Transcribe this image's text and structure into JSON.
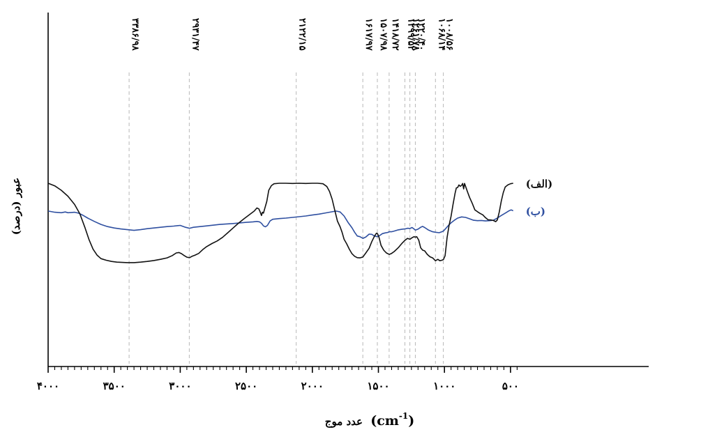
{
  "chart_data": {
    "type": "line",
    "title": "",
    "xlabel": "عدد موج (cm⁻¹)",
    "xlabel_parts": {
      "prefix": "عدد موج",
      "unit_base": "(cm",
      "unit_exp": "-1",
      "unit_close": ")"
    },
    "ylabel": "عبور (درصد)",
    "xlim": [
      4000,
      420
    ],
    "x_reversed": true,
    "ylim": [
      0,
      100
    ],
    "x_tick_labels": [
      {
        "value": 4000,
        "label": "۴۰۰۰"
      },
      {
        "value": 3500,
        "label": "۳۵۰۰"
      },
      {
        "value": 3000,
        "label": "۳۰۰۰"
      },
      {
        "value": 2500,
        "label": "۲۵۰۰"
      },
      {
        "value": 2000,
        "label": "۲۰۰۰"
      },
      {
        "value": 1500,
        "label": "۱۵۰۰"
      },
      {
        "value": 1000,
        "label": "۱۰۰۰"
      },
      {
        "value": 500,
        "label": "۵۰۰"
      }
    ],
    "minor_tick_step": 50,
    "grid": false,
    "peak_markers": [
      {
        "x": 3386.98,
        "label": "۳۳۸۶/۹۸"
      },
      {
        "x": 2931.47,
        "label": "۲۹۳۱/۴۷"
      },
      {
        "x": 2122.15,
        "label": "۲۱۲۲/۱۵"
      },
      {
        "x": 1617.97,
        "label": "۱۶۱۷/۹۷"
      },
      {
        "x": 1507.98,
        "label": "۱۵۰۷/۹۸"
      },
      {
        "x": 1418.72,
        "label": "۱۴۱۸/۷۲"
      },
      {
        "x": 1299.52,
        "label": "۱۲۹۹/۵۲"
      },
      {
        "x": 1261.78,
        "label": "۱۲۶۱/۷۸"
      },
      {
        "x": 1220.4,
        "label": "۱۲۲۰/۴۰"
      },
      {
        "x": 1068.14,
        "label": "۱۰۶۸/۱۴"
      },
      {
        "x": 1008.56,
        "label": "۱۰۰۸/۵۶"
      }
    ],
    "series": [
      {
        "name": "(ب)",
        "color": "#2e4fa0",
        "points": [
          [
            4000,
            76.4
          ],
          [
            3950,
            75.4
          ],
          [
            3900,
            75.0
          ],
          [
            3870,
            75.6
          ],
          [
            3850,
            75.0
          ],
          [
            3820,
            75.2
          ],
          [
            3800,
            75.4
          ],
          [
            3770,
            74.6
          ],
          [
            3740,
            73.0
          ],
          [
            3700,
            70.4
          ],
          [
            3650,
            67.6
          ],
          [
            3600,
            65.0
          ],
          [
            3550,
            63.2
          ],
          [
            3500,
            62.0
          ],
          [
            3450,
            61.2
          ],
          [
            3400,
            60.6
          ],
          [
            3350,
            60.0
          ],
          [
            3300,
            60.6
          ],
          [
            3250,
            61.4
          ],
          [
            3200,
            62.0
          ],
          [
            3150,
            62.6
          ],
          [
            3100,
            63.2
          ],
          [
            3050,
            63.6
          ],
          [
            3000,
            64.2
          ],
          [
            2960,
            62.6
          ],
          [
            2930,
            61.8
          ],
          [
            2900,
            62.6
          ],
          [
            2850,
            63.2
          ],
          [
            2800,
            63.8
          ],
          [
            2700,
            65.0
          ],
          [
            2600,
            65.8
          ],
          [
            2500,
            66.8
          ],
          [
            2450,
            67.2
          ],
          [
            2420,
            67.6
          ],
          [
            2400,
            67.2
          ],
          [
            2385,
            66.0
          ],
          [
            2370,
            63.8
          ],
          [
            2355,
            63.0
          ],
          [
            2340,
            64.2
          ],
          [
            2320,
            68.0
          ],
          [
            2300,
            69.4
          ],
          [
            2250,
            70.0
          ],
          [
            2200,
            70.4
          ],
          [
            2150,
            71.0
          ],
          [
            2100,
            71.6
          ],
          [
            2050,
            72.2
          ],
          [
            2000,
            73.0
          ],
          [
            1950,
            73.8
          ],
          [
            1900,
            74.8
          ],
          [
            1850,
            75.8
          ],
          [
            1820,
            76.4
          ],
          [
            1790,
            75.6
          ],
          [
            1760,
            72.2
          ],
          [
            1730,
            66.8
          ],
          [
            1700,
            62.2
          ],
          [
            1680,
            58.4
          ],
          [
            1660,
            55.2
          ],
          [
            1640,
            54.6
          ],
          [
            1617,
            53.2
          ],
          [
            1595,
            54.4
          ],
          [
            1570,
            56.8
          ],
          [
            1550,
            56.6
          ],
          [
            1530,
            55.2
          ],
          [
            1507,
            54.6
          ],
          [
            1490,
            55.6
          ],
          [
            1470,
            57.2
          ],
          [
            1450,
            57.8
          ],
          [
            1430,
            58.2
          ],
          [
            1418,
            58.8
          ],
          [
            1400,
            58.8
          ],
          [
            1380,
            59.4
          ],
          [
            1350,
            60.4
          ],
          [
            1320,
            61.0
          ],
          [
            1299,
            61.2
          ],
          [
            1280,
            61.8
          ],
          [
            1261,
            61.6
          ],
          [
            1245,
            62.4
          ],
          [
            1230,
            61.2
          ],
          [
            1220,
            60.2
          ],
          [
            1200,
            61.0
          ],
          [
            1180,
            62.6
          ],
          [
            1165,
            63.4
          ],
          [
            1150,
            62.4
          ],
          [
            1120,
            60.2
          ],
          [
            1090,
            58.8
          ],
          [
            1068,
            58.4
          ],
          [
            1040,
            58.0
          ],
          [
            1020,
            58.8
          ],
          [
            1008,
            59.4
          ],
          [
            990,
            61.6
          ],
          [
            970,
            64.2
          ],
          [
            950,
            66.4
          ],
          [
            925,
            68.6
          ],
          [
            900,
            70.4
          ],
          [
            870,
            71.4
          ],
          [
            840,
            71.0
          ],
          [
            810,
            69.8
          ],
          [
            780,
            68.6
          ],
          [
            750,
            68.2
          ],
          [
            720,
            68.4
          ],
          [
            690,
            68.0
          ],
          [
            660,
            68.2
          ],
          [
            630,
            68.6
          ],
          [
            600,
            70.4
          ],
          [
            570,
            72.6
          ],
          [
            540,
            74.6
          ],
          [
            515,
            76.4
          ],
          [
            495,
            77.4
          ],
          [
            480,
            76.6
          ]
        ]
      },
      {
        "name": "(الف)",
        "color": "#111111",
        "points": [
          [
            4000,
            100.0
          ],
          [
            3950,
            97.8
          ],
          [
            3900,
            94.0
          ],
          [
            3850,
            89.0
          ],
          [
            3800,
            82.0
          ],
          [
            3760,
            74.0
          ],
          [
            3720,
            62.0
          ],
          [
            3690,
            52.0
          ],
          [
            3660,
            44.0
          ],
          [
            3630,
            39.0
          ],
          [
            3600,
            36.0
          ],
          [
            3560,
            34.6
          ],
          [
            3520,
            33.6
          ],
          [
            3480,
            33.0
          ],
          [
            3440,
            32.8
          ],
          [
            3400,
            32.6
          ],
          [
            3350,
            32.6
          ],
          [
            3300,
            33.0
          ],
          [
            3250,
            33.6
          ],
          [
            3200,
            34.4
          ],
          [
            3150,
            35.4
          ],
          [
            3100,
            36.6
          ],
          [
            3060,
            38.6
          ],
          [
            3030,
            40.8
          ],
          [
            3010,
            41.2
          ],
          [
            2990,
            40.2
          ],
          [
            2970,
            38.6
          ],
          [
            2950,
            37.2
          ],
          [
            2930,
            36.8
          ],
          [
            2910,
            38.0
          ],
          [
            2890,
            38.8
          ],
          [
            2860,
            40.4
          ],
          [
            2830,
            43.6
          ],
          [
            2800,
            46.2
          ],
          [
            2760,
            48.8
          ],
          [
            2720,
            51.0
          ],
          [
            2680,
            54.0
          ],
          [
            2640,
            58.0
          ],
          [
            2600,
            62.0
          ],
          [
            2560,
            66.0
          ],
          [
            2520,
            69.6
          ],
          [
            2480,
            73.0
          ],
          [
            2440,
            76.4
          ],
          [
            2420,
            79.0
          ],
          [
            2405,
            78.2
          ],
          [
            2395,
            75.6
          ],
          [
            2385,
            72.6
          ],
          [
            2378,
            75.4
          ],
          [
            2370,
            74.6
          ],
          [
            2360,
            78.6
          ],
          [
            2345,
            84.6
          ],
          [
            2330,
            94.0
          ],
          [
            2310,
            98.0
          ],
          [
            2290,
            99.6
          ],
          [
            2250,
            100.0
          ],
          [
            2200,
            100.0
          ],
          [
            2150,
            99.8
          ],
          [
            2100,
            100.0
          ],
          [
            2050,
            99.8
          ],
          [
            2000,
            100.0
          ],
          [
            1960,
            100.0
          ],
          [
            1920,
            99.6
          ],
          [
            1890,
            97.2
          ],
          [
            1870,
            93.0
          ],
          [
            1850,
            86.4
          ],
          [
            1830,
            77.0
          ],
          [
            1810,
            67.8
          ],
          [
            1790,
            63.0
          ],
          [
            1775,
            58.4
          ],
          [
            1760,
            52.4
          ],
          [
            1740,
            48.6
          ],
          [
            1720,
            44.0
          ],
          [
            1700,
            40.2
          ],
          [
            1680,
            38.0
          ],
          [
            1660,
            36.8
          ],
          [
            1640,
            36.6
          ],
          [
            1617,
            37.4
          ],
          [
            1595,
            40.8
          ],
          [
            1570,
            44.8
          ],
          [
            1550,
            50.4
          ],
          [
            1530,
            55.0
          ],
          [
            1515,
            57.6
          ],
          [
            1507,
            57.2
          ],
          [
            1495,
            54.0
          ],
          [
            1480,
            47.2
          ],
          [
            1460,
            43.2
          ],
          [
            1440,
            40.8
          ],
          [
            1418,
            39.6
          ],
          [
            1400,
            40.4
          ],
          [
            1380,
            42.0
          ],
          [
            1350,
            45.2
          ],
          [
            1320,
            49.2
          ],
          [
            1299,
            51.6
          ],
          [
            1280,
            53.2
          ],
          [
            1261,
            52.4
          ],
          [
            1245,
            53.8
          ],
          [
            1230,
            54.6
          ],
          [
            1220,
            54.2
          ],
          [
            1210,
            54.6
          ],
          [
            1195,
            51.8
          ],
          [
            1180,
            45.2
          ],
          [
            1165,
            43.2
          ],
          [
            1150,
            42.6
          ],
          [
            1130,
            39.6
          ],
          [
            1110,
            37.6
          ],
          [
            1090,
            36.6
          ],
          [
            1068,
            34.2
          ],
          [
            1050,
            35.4
          ],
          [
            1035,
            34.2
          ],
          [
            1020,
            34.6
          ],
          [
            1008,
            35.2
          ],
          [
            995,
            38.4
          ],
          [
            980,
            54.0
          ],
          [
            965,
            64.2
          ],
          [
            950,
            72.0
          ],
          [
            935,
            82.0
          ],
          [
            920,
            91.4
          ],
          [
            910,
            96.0
          ],
          [
            900,
            96.4
          ],
          [
            890,
            98.6
          ],
          [
            880,
            97.4
          ],
          [
            870,
            98.2
          ],
          [
            862,
            99.8
          ],
          [
            855,
            95.2
          ],
          [
            848,
            99.8
          ],
          [
            838,
            96.6
          ],
          [
            825,
            92.6
          ],
          [
            810,
            88.0
          ],
          [
            790,
            83.0
          ],
          [
            770,
            77.4
          ],
          [
            750,
            75.8
          ],
          [
            730,
            74.4
          ],
          [
            710,
            73.2
          ],
          [
            690,
            70.8
          ],
          [
            670,
            69.0
          ],
          [
            650,
            68.8
          ],
          [
            630,
            68.4
          ],
          [
            612,
            67.4
          ],
          [
            600,
            68.8
          ],
          [
            585,
            75.6
          ],
          [
            570,
            84.6
          ],
          [
            555,
            92.0
          ],
          [
            540,
            96.8
          ],
          [
            520,
            98.6
          ],
          [
            500,
            99.6
          ],
          [
            480,
            100.0
          ]
        ]
      }
    ]
  }
}
